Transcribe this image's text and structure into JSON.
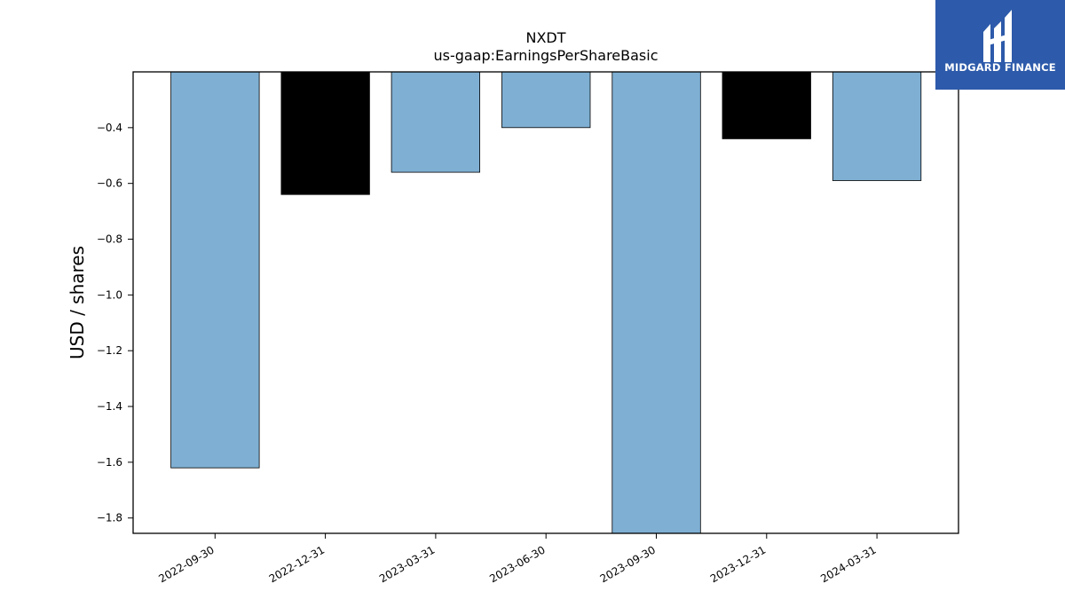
{
  "chart_data": {
    "type": "bar",
    "title": "NXDT",
    "subtitle": "us-gaap:EarningsPerShareBasic",
    "xlabel": "",
    "ylabel": "USD / shares",
    "categories": [
      "2022-09-30",
      "2022-12-31",
      "2023-03-31",
      "2023-06-30",
      "2023-09-30",
      "2023-12-31",
      "2024-03-31"
    ],
    "values": [
      -1.62,
      -0.64,
      -0.56,
      -0.4,
      -1.87,
      -0.44,
      -0.59
    ],
    "bar_colors": [
      "#7fb0d3",
      "#000000",
      "#7fb0d3",
      "#7fb0d3",
      "#7fb0d3",
      "#000000",
      "#7fb0d3"
    ],
    "ylim": [
      -1.855,
      -0.2
    ],
    "yticks": [
      -1.8,
      -1.6,
      -1.4,
      -1.2,
      -1.0,
      -0.8,
      -0.6,
      -0.4
    ],
    "ytick_labels": [
      "−1.8",
      "−1.6",
      "−1.4",
      "−1.2",
      "−1.0",
      "−0.8",
      "−0.6",
      "−0.4"
    ],
    "grid": false,
    "legend": "none"
  },
  "logo": {
    "text": "MIDGARD FINANCE",
    "background": "#2d5aaa"
  }
}
